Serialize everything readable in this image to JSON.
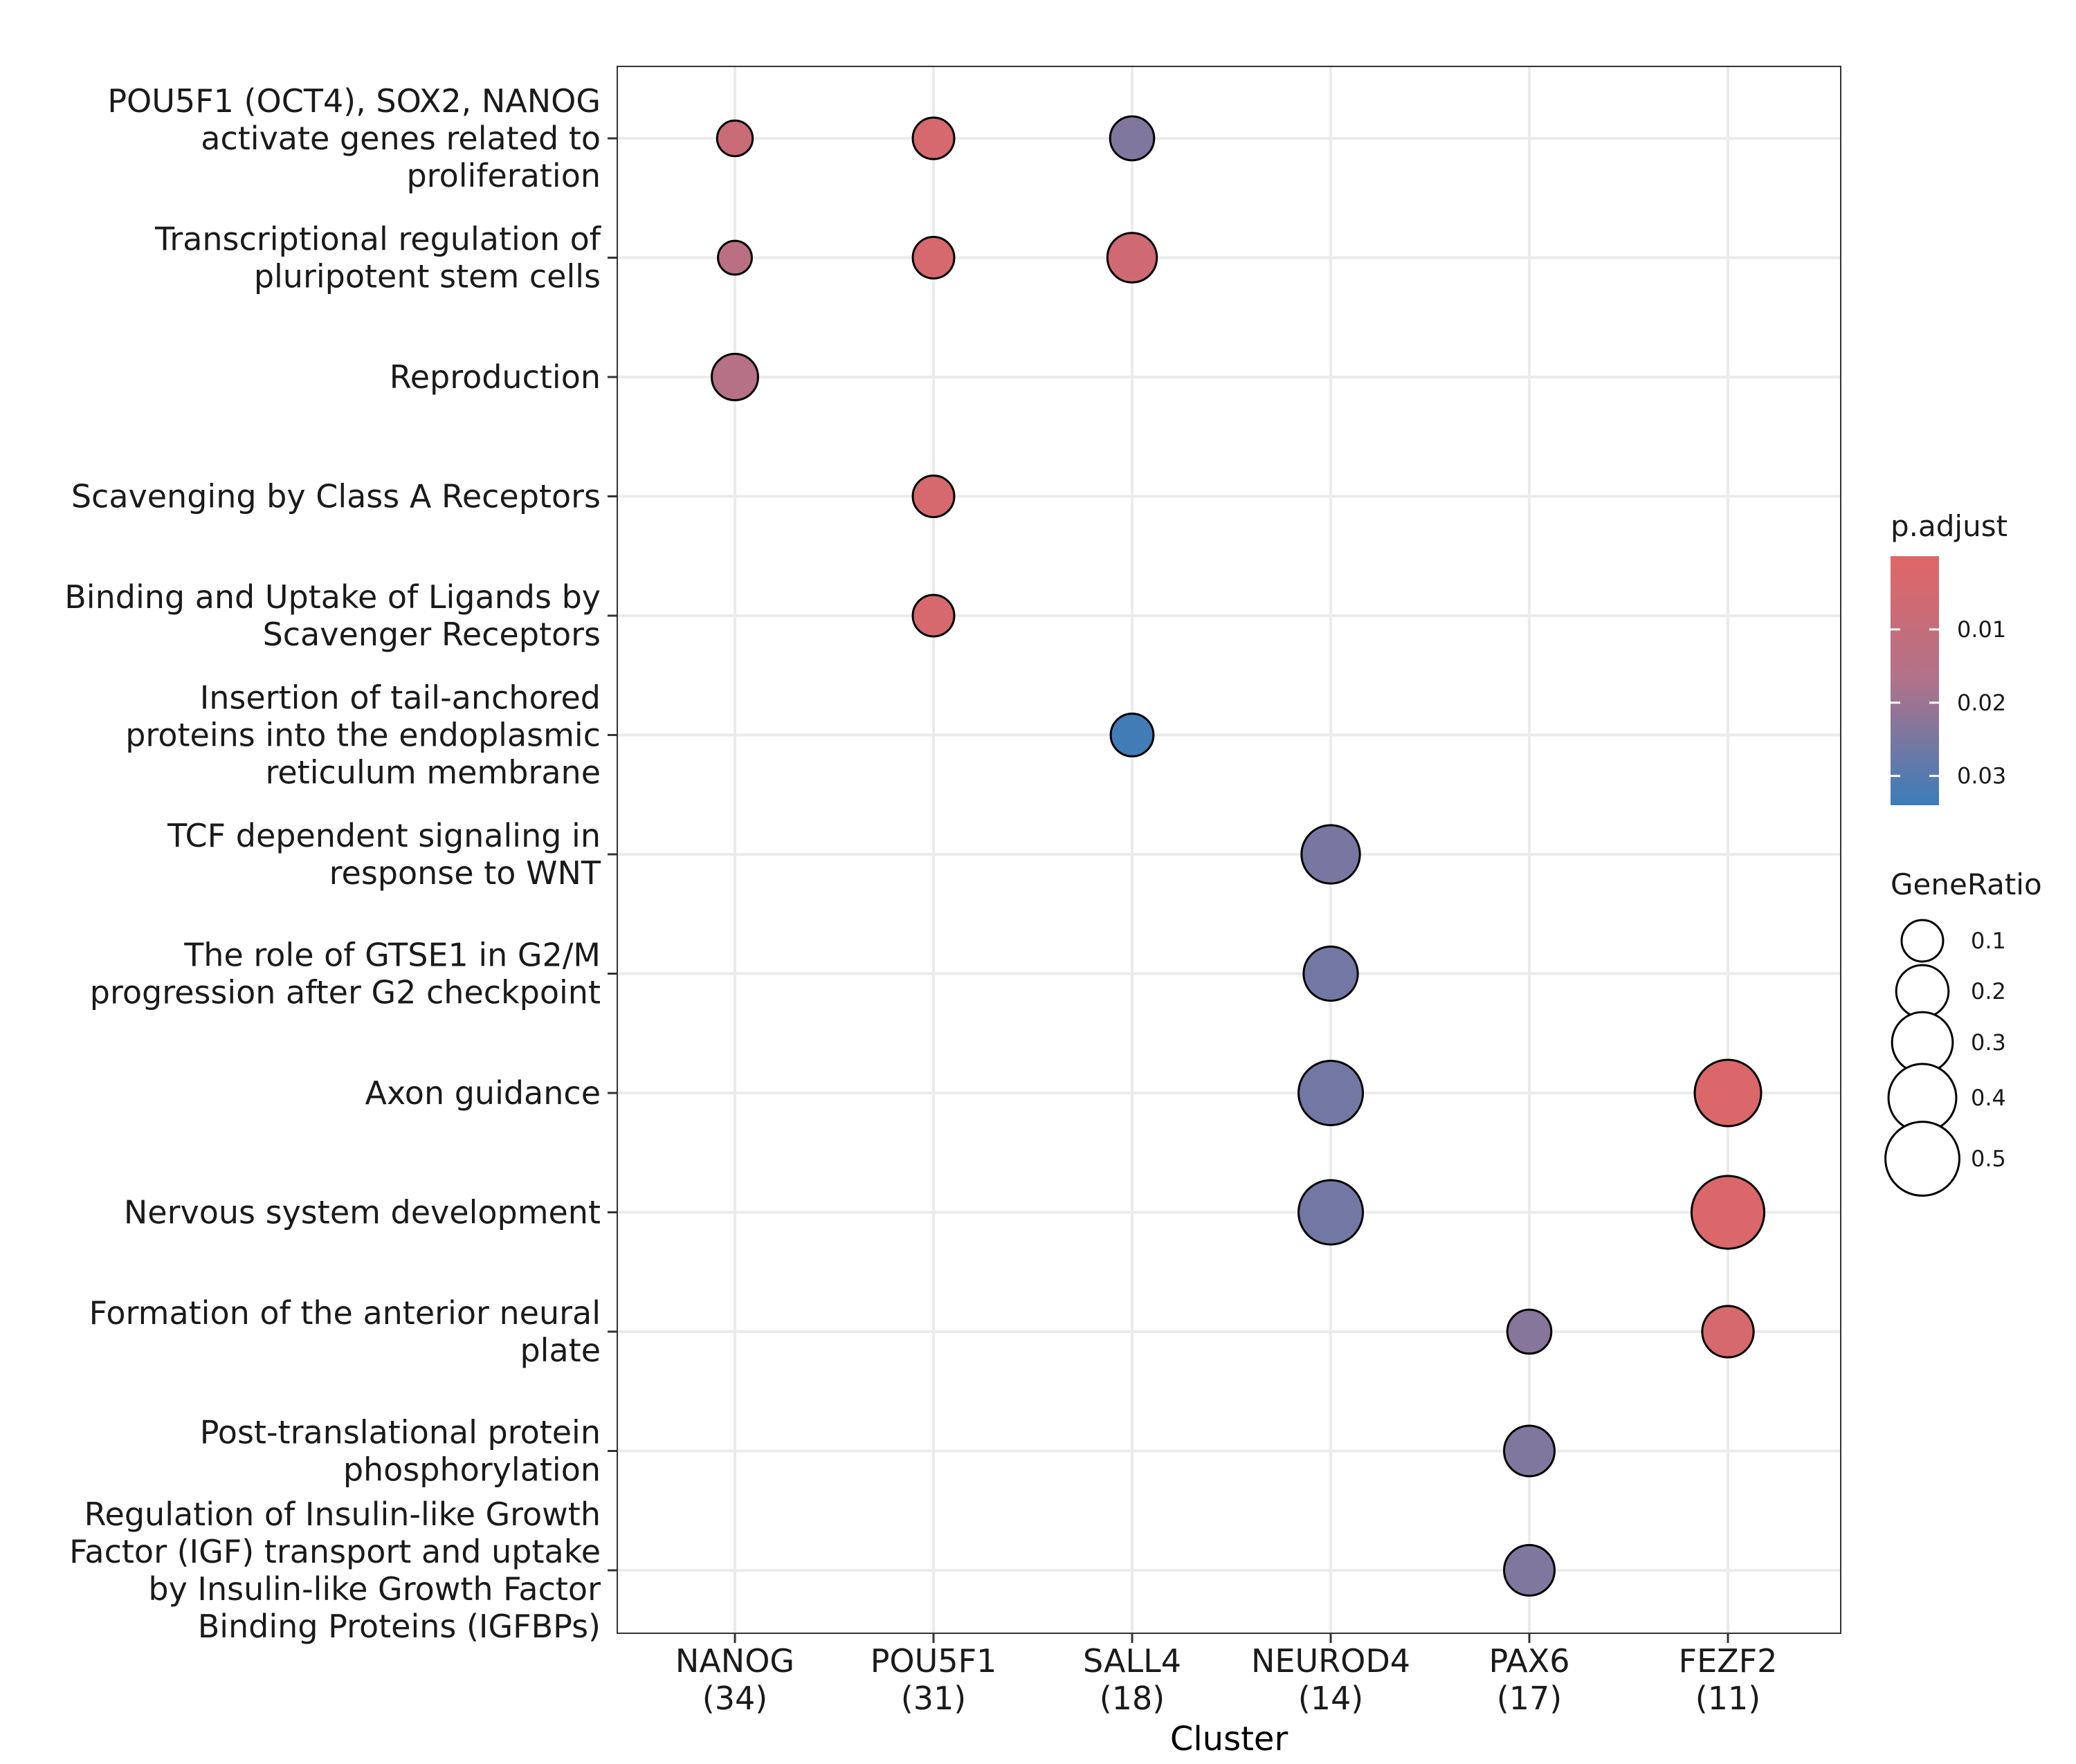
{
  "chart_data": {
    "type": "scatter",
    "subtype": "dot-plot",
    "xlabel": "Cluster",
    "ylabel": "",
    "grid": true,
    "legend_position": "right",
    "x_categories": [
      {
        "name": "NANOG",
        "count": "(34)"
      },
      {
        "name": "POU5F1",
        "count": "(31)"
      },
      {
        "name": "SALL4",
        "count": "(18)"
      },
      {
        "name": "NEUROD4",
        "count": "(14)"
      },
      {
        "name": "PAX6",
        "count": "(17)"
      },
      {
        "name": "FEZF2",
        "count": "(11)"
      }
    ],
    "y_categories": [
      [
        "POU5F1 (OCT4), SOX2, NANOG",
        "activate genes related to",
        "proliferation"
      ],
      [
        "Transcriptional regulation of",
        "pluripotent stem cells"
      ],
      [
        "Reproduction"
      ],
      [
        "Scavenging by Class A Receptors"
      ],
      [
        "Binding and Uptake of Ligands by",
        "Scavenger Receptors"
      ],
      [
        "Insertion of tail-anchored",
        "proteins into the endoplasmic",
        "reticulum membrane"
      ],
      [
        "TCF dependent signaling in",
        "response to WNT"
      ],
      [
        "The role of GTSE1 in G2/M",
        "progression after G2 checkpoint"
      ],
      [
        "Axon guidance"
      ],
      [
        "Nervous system development"
      ],
      [
        "Formation of the anterior neural",
        "plate"
      ],
      [
        "Post-translational protein",
        "phosphorylation"
      ],
      [
        "Regulation of Insulin-like Growth",
        "Factor (IGF) transport and uptake",
        "by Insulin-like Growth Factor",
        "Binding Proteins (IGFBPs)"
      ]
    ],
    "points": [
      {
        "x": 0,
        "y": 0,
        "gene_ratio": 0.06,
        "p_adjust": 0.008
      },
      {
        "x": 1,
        "y": 0,
        "gene_ratio": 0.1,
        "p_adjust": 0.004
      },
      {
        "x": 2,
        "y": 0,
        "gene_ratio": 0.12,
        "p_adjust": 0.024
      },
      {
        "x": 0,
        "y": 1,
        "gene_ratio": 0.05,
        "p_adjust": 0.013
      },
      {
        "x": 1,
        "y": 1,
        "gene_ratio": 0.1,
        "p_adjust": 0.004
      },
      {
        "x": 2,
        "y": 1,
        "gene_ratio": 0.17,
        "p_adjust": 0.006
      },
      {
        "x": 0,
        "y": 2,
        "gene_ratio": 0.14,
        "p_adjust": 0.015
      },
      {
        "x": 1,
        "y": 3,
        "gene_ratio": 0.1,
        "p_adjust": 0.004
      },
      {
        "x": 1,
        "y": 4,
        "gene_ratio": 0.1,
        "p_adjust": 0.004
      },
      {
        "x": 2,
        "y": 5,
        "gene_ratio": 0.11,
        "p_adjust": 0.033
      },
      {
        "x": 3,
        "y": 6,
        "gene_ratio": 0.27,
        "p_adjust": 0.025
      },
      {
        "x": 3,
        "y": 7,
        "gene_ratio": 0.22,
        "p_adjust": 0.026
      },
      {
        "x": 3,
        "y": 8,
        "gene_ratio": 0.35,
        "p_adjust": 0.026
      },
      {
        "x": 5,
        "y": 8,
        "gene_ratio": 0.38,
        "p_adjust": 0.002
      },
      {
        "x": 3,
        "y": 9,
        "gene_ratio": 0.35,
        "p_adjust": 0.026
      },
      {
        "x": 5,
        "y": 9,
        "gene_ratio": 0.48,
        "p_adjust": 0.002
      },
      {
        "x": 4,
        "y": 10,
        "gene_ratio": 0.12,
        "p_adjust": 0.023
      },
      {
        "x": 5,
        "y": 10,
        "gene_ratio": 0.19,
        "p_adjust": 0.004
      },
      {
        "x": 4,
        "y": 11,
        "gene_ratio": 0.18,
        "p_adjust": 0.024
      },
      {
        "x": 4,
        "y": 12,
        "gene_ratio": 0.18,
        "p_adjust": 0.024
      }
    ],
    "color_legend": {
      "title": "p.adjust",
      "ticks": [
        0.01,
        0.02,
        0.03
      ],
      "tick_labels": [
        "0.01",
        "0.02",
        "0.03"
      ],
      "range": [
        0.0,
        0.034
      ],
      "low_color": "#E06666",
      "mid_color": "#B0728A",
      "high_color": "#3A7DBA"
    },
    "size_legend": {
      "title": "GeneRatio",
      "values": [
        0.1,
        0.2,
        0.3,
        0.4,
        0.5
      ],
      "labels": [
        "0.1",
        "0.2",
        "0.3",
        "0.4",
        "0.5"
      ]
    }
  }
}
